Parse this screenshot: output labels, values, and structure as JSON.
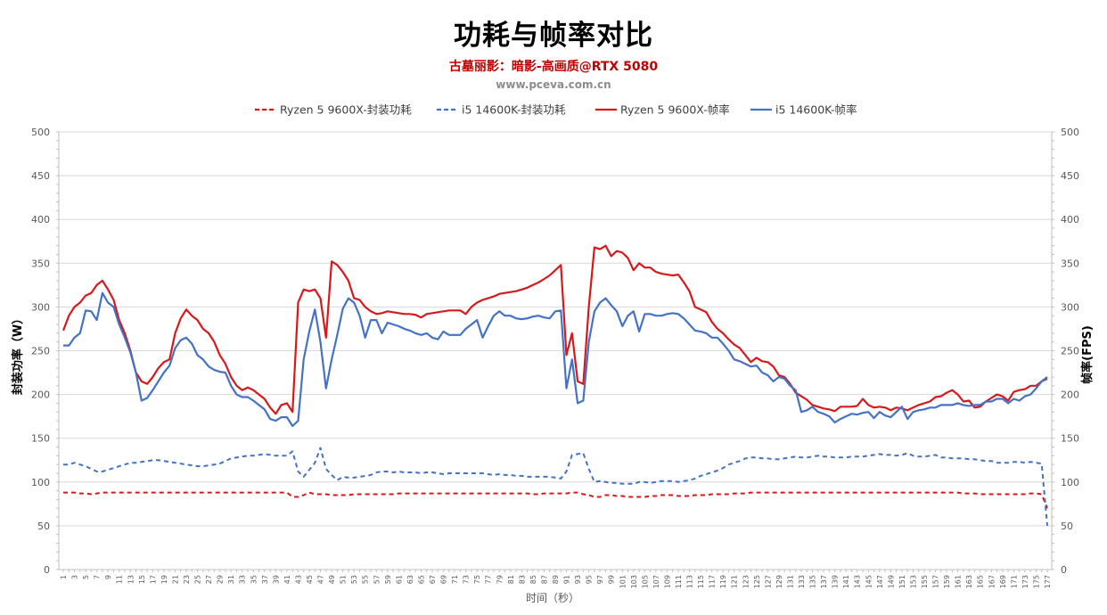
{
  "header": {
    "title": "功耗与帧率对比",
    "subtitle": "古墓丽影：暗影-高画质@RTX 5080",
    "site": "www.pceva.com.cn"
  },
  "colors": {
    "red": "#d7191c",
    "blue": "#4472c4",
    "subtitle": "#c00000",
    "axis_text": "#595959",
    "grid": "#d9d9d9"
  },
  "chart_data": {
    "type": "line",
    "title": "功耗与帧率对比",
    "subtitle": "古墓丽影：暗影-高画质@RTX 5080",
    "xlabel": "时间（秒）",
    "ylabel_left": "封装功率（W）",
    "ylabel_right": "帧率(FPS)",
    "ylim": [
      0,
      500
    ],
    "yticks": [
      0,
      50,
      100,
      150,
      200,
      250,
      300,
      350,
      400,
      450,
      500
    ],
    "xticks": [
      1,
      3,
      5,
      7,
      9,
      11,
      13,
      15,
      17,
      19,
      21,
      23,
      25,
      27,
      29,
      31,
      33,
      35,
      37,
      39,
      41,
      43,
      45,
      47,
      49,
      51,
      53,
      55,
      57,
      59,
      61,
      63,
      65,
      67,
      69,
      71,
      73,
      75,
      77,
      79,
      81,
      83,
      85,
      87,
      89,
      91,
      93,
      95,
      97,
      99,
      101,
      103,
      105,
      107,
      109,
      111,
      113,
      115,
      117,
      119,
      121,
      123,
      125,
      127,
      129,
      131,
      133,
      135,
      137,
      139,
      141,
      143,
      145,
      147,
      149,
      151,
      153,
      155,
      157,
      159,
      161,
      163,
      165,
      167,
      169,
      171,
      173,
      175,
      177
    ],
    "x": [
      1,
      2,
      3,
      4,
      5,
      6,
      7,
      8,
      9,
      10,
      11,
      12,
      13,
      14,
      15,
      16,
      17,
      18,
      19,
      20,
      21,
      22,
      23,
      24,
      25,
      26,
      27,
      28,
      29,
      30,
      31,
      32,
      33,
      34,
      35,
      36,
      37,
      38,
      39,
      40,
      41,
      42,
      43,
      44,
      45,
      46,
      47,
      48,
      49,
      50,
      51,
      52,
      53,
      54,
      55,
      56,
      57,
      58,
      59,
      60,
      61,
      62,
      63,
      64,
      65,
      66,
      67,
      68,
      69,
      70,
      71,
      72,
      73,
      74,
      75,
      76,
      77,
      78,
      79,
      80,
      81,
      82,
      83,
      84,
      85,
      86,
      87,
      88,
      89,
      90,
      91,
      92,
      93,
      94,
      95,
      96,
      97,
      98,
      99,
      100,
      101,
      102,
      103,
      104,
      105,
      106,
      107,
      108,
      109,
      110,
      111,
      112,
      113,
      114,
      115,
      116,
      117,
      118,
      119,
      120,
      121,
      122,
      123,
      124,
      125,
      126,
      127,
      128,
      129,
      130,
      131,
      132,
      133,
      134,
      135,
      136,
      137,
      138,
      139,
      140,
      141,
      142,
      143,
      144,
      145,
      146,
      147,
      148,
      149,
      150,
      151,
      152,
      153,
      154,
      155,
      156,
      157,
      158,
      159,
      160,
      161,
      162,
      163,
      164,
      165,
      166,
      167,
      168,
      169,
      170,
      171,
      172,
      173,
      174,
      175,
      176,
      177
    ],
    "legend_position": "top",
    "series": [
      {
        "name": "Ryzen 5 9600X-封装功耗",
        "axis": "left",
        "color": "#d7191c",
        "dash": true,
        "values": [
          88,
          88,
          88,
          87,
          87,
          86,
          87,
          88,
          88,
          88,
          88,
          88,
          88,
          88,
          88,
          88,
          88,
          88,
          88,
          88,
          88,
          88,
          88,
          88,
          88,
          88,
          88,
          88,
          88,
          88,
          88,
          88,
          88,
          88,
          88,
          88,
          88,
          88,
          88,
          88,
          88,
          83,
          83,
          85,
          88,
          86,
          86,
          86,
          85,
          85,
          85,
          85,
          86,
          86,
          86,
          86,
          86,
          86,
          86,
          86,
          87,
          87,
          87,
          87,
          87,
          87,
          87,
          87,
          87,
          87,
          87,
          87,
          87,
          87,
          87,
          87,
          87,
          87,
          87,
          87,
          87,
          87,
          87,
          87,
          86,
          86,
          87,
          87,
          87,
          87,
          87,
          88,
          88,
          86,
          85,
          83,
          83,
          85,
          85,
          84,
          84,
          83,
          83,
          83,
          83,
          84,
          84,
          85,
          85,
          85,
          84,
          84,
          84,
          85,
          85,
          85,
          86,
          86,
          86,
          86,
          87,
          87,
          87,
          88,
          88,
          88,
          88,
          88,
          88,
          88,
          88,
          88,
          88,
          88,
          88,
          88,
          88,
          88,
          88,
          88,
          88,
          88,
          88,
          88,
          88,
          88,
          88,
          88,
          88,
          88,
          88,
          88,
          88,
          88,
          88,
          88,
          88,
          88,
          88,
          88,
          88,
          87,
          87,
          87,
          86,
          86,
          86,
          86,
          86,
          86,
          86,
          86,
          86,
          87,
          87,
          86,
          70
        ]
      },
      {
        "name": "i5 14600K-封装功耗",
        "axis": "left",
        "color": "#4472c4",
        "dash": true,
        "values": [
          120,
          120,
          122,
          120,
          118,
          115,
          112,
          112,
          114,
          116,
          118,
          120,
          122,
          122,
          123,
          124,
          125,
          125,
          124,
          123,
          122,
          121,
          120,
          119,
          118,
          118,
          119,
          120,
          121,
          124,
          127,
          128,
          129,
          130,
          130,
          131,
          132,
          131,
          130,
          130,
          130,
          135,
          112,
          106,
          114,
          122,
          139,
          115,
          108,
          102,
          106,
          105,
          105,
          106,
          107,
          108,
          111,
          112,
          112,
          111,
          112,
          111,
          111,
          111,
          110,
          111,
          111,
          110,
          109,
          110,
          110,
          110,
          110,
          110,
          110,
          110,
          109,
          108,
          109,
          108,
          108,
          107,
          107,
          106,
          106,
          106,
          106,
          106,
          105,
          104,
          112,
          131,
          132,
          133,
          115,
          100,
          101,
          100,
          99,
          99,
          98,
          98,
          98,
          100,
          100,
          99,
          100,
          101,
          101,
          101,
          100,
          101,
          102,
          104,
          107,
          109,
          111,
          113,
          116,
          120,
          122,
          124,
          127,
          128,
          128,
          127,
          127,
          126,
          126,
          127,
          128,
          129,
          128,
          128,
          129,
          130,
          129,
          129,
          128,
          128,
          128,
          129,
          129,
          129,
          130,
          131,
          132,
          131,
          131,
          130,
          131,
          133,
          130,
          129,
          129,
          130,
          131,
          128,
          128,
          127,
          127,
          127,
          126,
          126,
          125,
          124,
          124,
          122,
          122,
          122,
          123,
          123,
          122,
          123,
          122,
          121,
          50
        ]
      },
      {
        "name": "Ryzen 5 9600X-帧率",
        "axis": "right",
        "color": "#d7191c",
        "dash": false,
        "values": [
          273,
          290,
          300,
          305,
          313,
          316,
          325,
          330,
          320,
          308,
          285,
          270,
          250,
          225,
          215,
          212,
          220,
          230,
          237,
          240,
          270,
          287,
          297,
          290,
          285,
          275,
          270,
          260,
          245,
          235,
          220,
          210,
          205,
          208,
          205,
          200,
          195,
          185,
          178,
          188,
          190,
          180,
          305,
          320,
          318,
          320,
          310,
          265,
          352,
          348,
          340,
          330,
          310,
          308,
          300,
          295,
          292,
          293,
          295,
          294,
          293,
          292,
          292,
          291,
          288,
          292,
          293,
          294,
          295,
          296,
          296,
          296,
          292,
          300,
          305,
          308,
          310,
          312,
          315,
          316,
          317,
          318,
          320,
          322,
          325,
          328,
          332,
          336,
          342,
          348,
          245,
          270,
          215,
          212,
          300,
          368,
          366,
          370,
          358,
          364,
          362,
          356,
          342,
          350,
          345,
          345,
          340,
          338,
          337,
          336,
          337,
          328,
          318,
          300,
          297,
          294,
          283,
          275,
          270,
          263,
          257,
          253,
          245,
          237,
          242,
          238,
          237,
          232,
          222,
          220,
          212,
          202,
          198,
          194,
          188,
          186,
          184,
          183,
          181,
          186,
          186,
          186,
          187,
          195,
          188,
          185,
          186,
          185,
          182,
          185,
          184,
          182,
          185,
          188,
          190,
          192,
          197,
          198,
          202,
          205,
          200,
          192,
          193,
          185,
          186,
          192,
          196,
          200,
          198,
          193,
          203,
          205,
          206,
          210,
          210,
          215,
          218
        ]
      },
      {
        "name": "i5 14600K-帧率",
        "axis": "right",
        "color": "#4472c4",
        "dash": false,
        "values": [
          256,
          256,
          265,
          270,
          296,
          295,
          285,
          316,
          305,
          300,
          280,
          265,
          248,
          225,
          193,
          196,
          205,
          215,
          225,
          233,
          253,
          262,
          265,
          258,
          245,
          240,
          232,
          228,
          226,
          225,
          210,
          200,
          197,
          197,
          193,
          188,
          183,
          172,
          170,
          174,
          174,
          164,
          170,
          240,
          272,
          297,
          260,
          207,
          240,
          268,
          298,
          310,
          305,
          290,
          265,
          285,
          285,
          270,
          282,
          280,
          278,
          275,
          273,
          270,
          268,
          270,
          265,
          263,
          272,
          268,
          268,
          268,
          275,
          280,
          285,
          265,
          278,
          290,
          295,
          290,
          290,
          287,
          286,
          287,
          289,
          290,
          288,
          287,
          295,
          296,
          207,
          240,
          190,
          193,
          260,
          295,
          305,
          310,
          302,
          295,
          278,
          290,
          295,
          272,
          292,
          292,
          290,
          290,
          292,
          293,
          292,
          287,
          280,
          273,
          272,
          270,
          265,
          265,
          258,
          250,
          240,
          238,
          235,
          232,
          233,
          225,
          222,
          215,
          220,
          218,
          210,
          205,
          180,
          182,
          186,
          180,
          178,
          175,
          168,
          172,
          175,
          178,
          177,
          179,
          180,
          173,
          180,
          176,
          174,
          180,
          186,
          172,
          180,
          182,
          183,
          185,
          185,
          188,
          188,
          188,
          190,
          188,
          187,
          188,
          188,
          192,
          192,
          195,
          195,
          190,
          195,
          193,
          198,
          200,
          207,
          215,
          220
        ]
      }
    ]
  }
}
